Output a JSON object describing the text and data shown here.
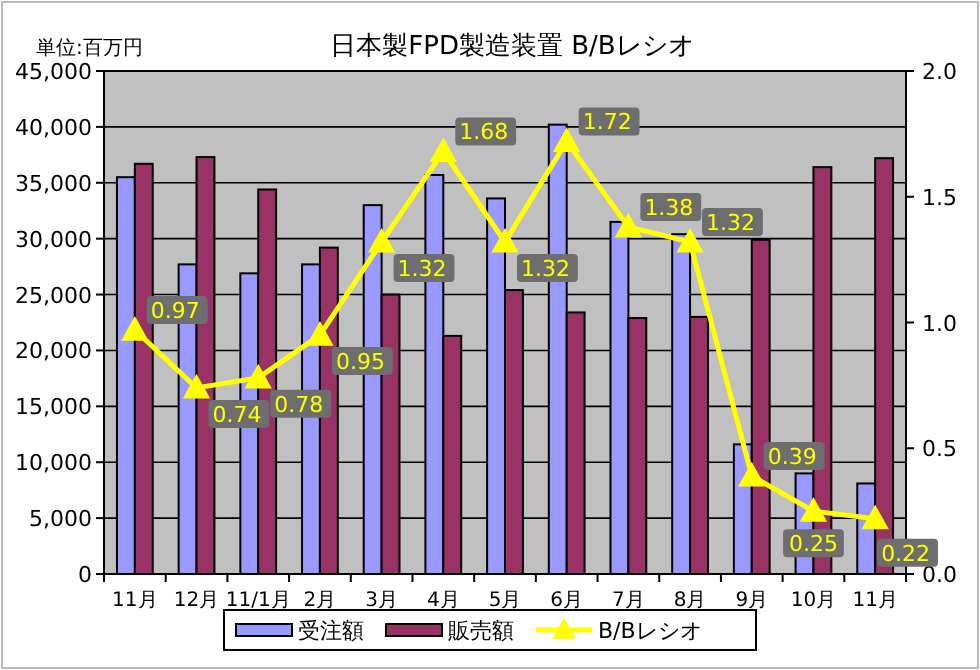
{
  "chart_data": {
    "type": "bar",
    "title": "日本製FPD製造装置 B/Bレシオ",
    "ylabel": "単位:百万円",
    "categories": [
      "11月",
      "12月",
      "11/1月",
      "2月",
      "3月",
      "4月",
      "5月",
      "6月",
      "7月",
      "8月",
      "9月",
      "10月",
      "11月"
    ],
    "series": [
      {
        "name": "受注額",
        "type": "bar",
        "color": "#9999ff",
        "values": [
          35500,
          27700,
          26900,
          27700,
          33000,
          35700,
          33600,
          40200,
          31500,
          30400,
          11600,
          9000,
          8100
        ]
      },
      {
        "name": "販売額",
        "type": "bar",
        "color": "#993366",
        "values": [
          36700,
          37300,
          34400,
          29200,
          25000,
          21300,
          25400,
          23400,
          22900,
          23000,
          29900,
          36400,
          37200
        ]
      },
      {
        "name": "B/Bレシオ",
        "type": "line",
        "axis": "y2",
        "color": "#ffff00",
        "marker": "triangle",
        "values": [
          0.97,
          0.74,
          0.78,
          0.95,
          1.32,
          1.68,
          1.32,
          1.72,
          1.38,
          1.32,
          0.39,
          0.25,
          0.22
        ],
        "value_labels": [
          "0.97",
          "0.74",
          "0.78",
          "0.95",
          "1.32",
          "1.68",
          "1.32",
          "1.72",
          "1.38",
          "1.32",
          "0.39",
          "0.25",
          "0.22"
        ]
      }
    ],
    "ylim": [
      0,
      45000
    ],
    "yticks": [
      0,
      {
        "value": 5000,
        "label": "5,000"
      },
      {
        "value": 10000,
        "label": "10,000"
      },
      {
        "value": 15000,
        "label": "15,000"
      },
      {
        "value": 20000,
        "label": "20,000"
      },
      {
        "value": 25000,
        "label": "25,000"
      },
      {
        "value": 30000,
        "label": "30,000"
      },
      {
        "value": 35000,
        "label": "35,000"
      },
      {
        "value": 40000,
        "label": "40,000"
      },
      {
        "value": 45000,
        "label": "45,000"
      }
    ],
    "y2lim": [
      0,
      2.0
    ],
    "y2ticks": [
      {
        "value": 0,
        "label": "0.0"
      },
      {
        "value": 0.5,
        "label": "0.5"
      },
      {
        "value": 1,
        "label": "1.0"
      },
      {
        "value": 1.5,
        "label": "1.5"
      },
      {
        "value": 2,
        "label": "2.0"
      }
    ],
    "grid": "y",
    "legend": "bottom"
  }
}
